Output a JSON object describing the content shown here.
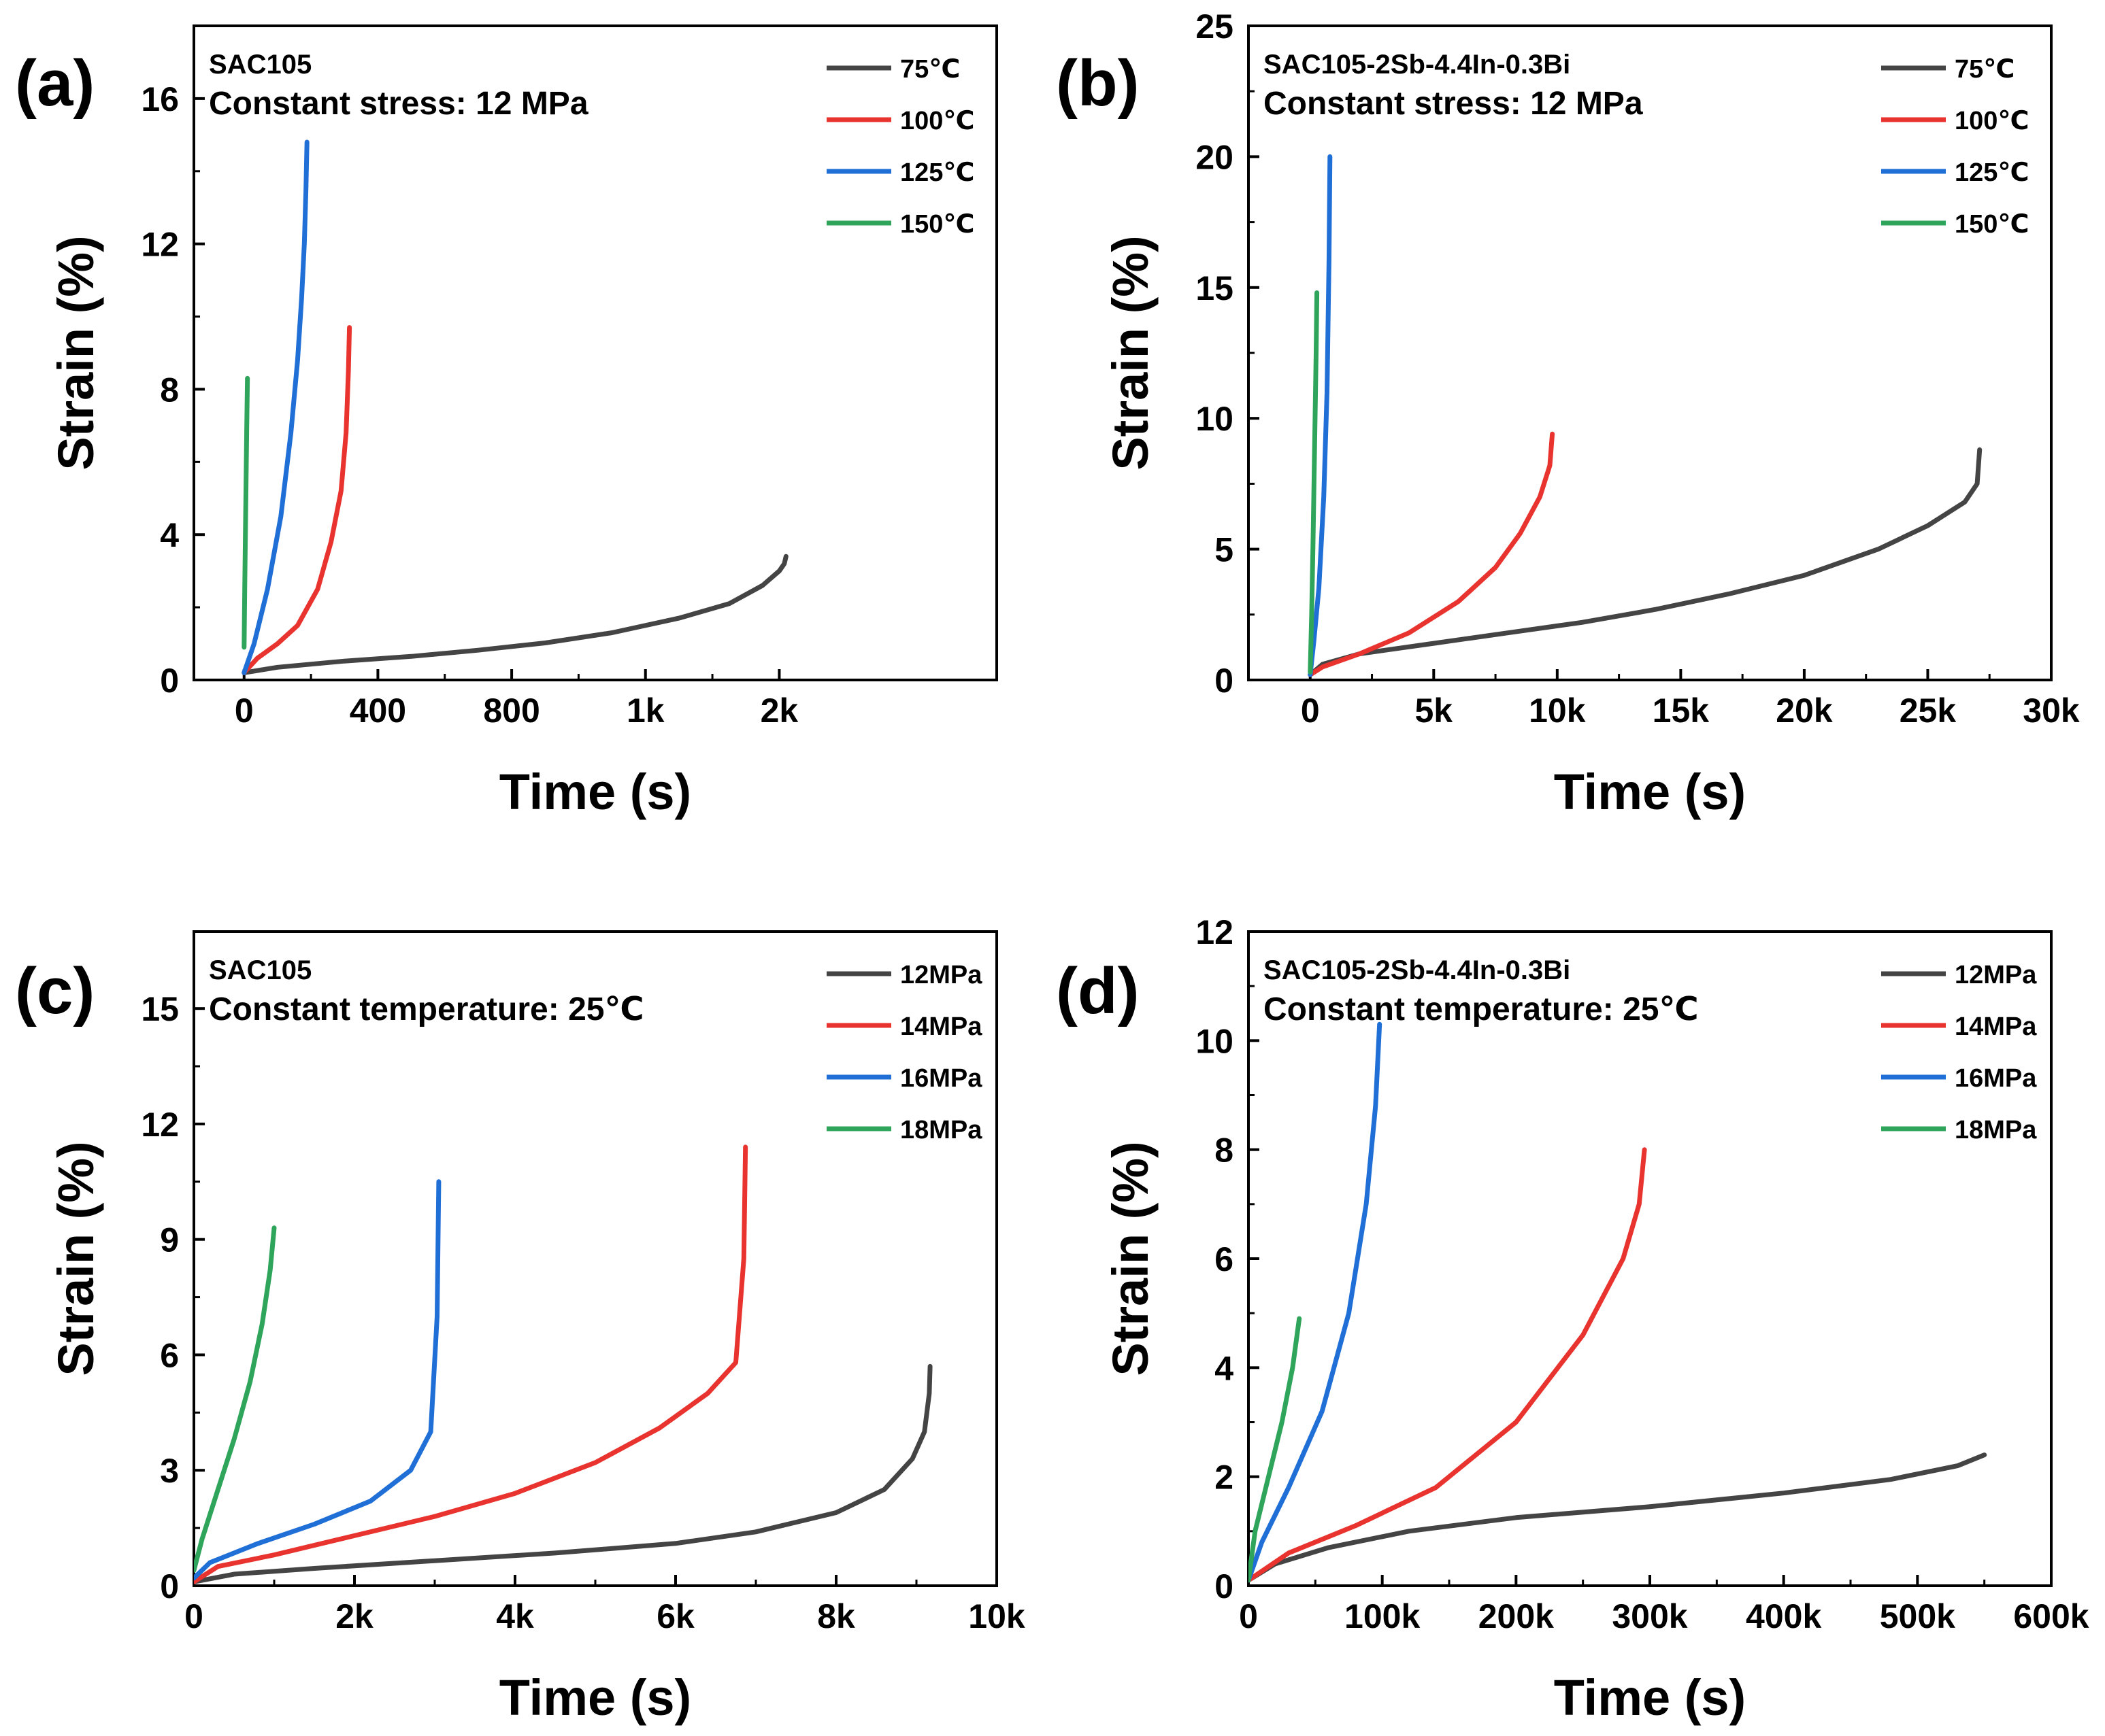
{
  "figure": {
    "description_note": "Four creep curve panels"
  },
  "chart_data": [
    {
      "type": "line",
      "panel_label": "(a)",
      "annotation_line1": "SAC105",
      "annotation_line2": "Constant stress: 12 MPa",
      "xlabel": "Time (s)",
      "ylabel": "Strain (%)",
      "xlim": [
        -150,
        2250
      ],
      "ylim": [
        0,
        18
      ],
      "xticks": [
        0,
        400,
        800,
        1000,
        2000
      ],
      "xtick_labels": [
        "0",
        "400",
        "800",
        "1k",
        "2k"
      ],
      "xtick_positions": [
        0,
        400,
        800,
        1200,
        1600
      ],
      "yticks": [
        0,
        4,
        8,
        12,
        16
      ],
      "ytick_labels": [
        "0",
        "4",
        "8",
        "12",
        "16"
      ],
      "x_axis_note": "axis labels read 0, 400, 800, 1k, 2k at equal spacing; curves plotted on that label scale",
      "series": [
        {
          "name": "75℃",
          "color": "#444444",
          "x": [
            0,
            100,
            300,
            500,
            700,
            900,
            1100,
            1300,
            1450,
            1550,
            1600,
            1615,
            1620
          ],
          "y": [
            0.2,
            0.35,
            0.52,
            0.65,
            0.82,
            1.02,
            1.3,
            1.7,
            2.1,
            2.6,
            3.0,
            3.2,
            3.4
          ]
        },
        {
          "name": "100℃",
          "color": "#e8332f",
          "x": [
            0,
            40,
            100,
            160,
            220,
            260,
            290,
            305,
            312,
            315
          ],
          "y": [
            0.2,
            0.6,
            1.0,
            1.5,
            2.5,
            3.8,
            5.2,
            6.8,
            8.5,
            9.7
          ]
        },
        {
          "name": "125℃",
          "color": "#1f6fd6",
          "x": [
            0,
            30,
            70,
            110,
            140,
            160,
            172,
            180,
            185,
            188
          ],
          "y": [
            0.2,
            1.0,
            2.5,
            4.5,
            6.8,
            8.8,
            10.5,
            12.0,
            13.5,
            14.8
          ]
        },
        {
          "name": "150℃",
          "color": "#2ea55a",
          "x": [
            0,
            2,
            4,
            6,
            8,
            10
          ],
          "y": [
            0.9,
            2.5,
            4.0,
            5.5,
            7.0,
            8.3
          ]
        }
      ]
    },
    {
      "type": "line",
      "panel_label": "(b)",
      "annotation_line1": "SAC105-2Sb-4.4In-0.3Bi",
      "annotation_line2": "Constant stress: 12 MPa",
      "xlabel": "Time (s)",
      "ylabel": "Strain (%)",
      "xlim": [
        -2500,
        30000
      ],
      "ylim": [
        0,
        25
      ],
      "xticks": [
        0,
        5000,
        10000,
        15000,
        20000,
        25000,
        30000
      ],
      "xtick_labels": [
        "0",
        "5k",
        "10k",
        "15k",
        "20k",
        "25k",
        "30k"
      ],
      "yticks": [
        0,
        5,
        10,
        15,
        20,
        25
      ],
      "ytick_labels": [
        "0",
        "5",
        "10",
        "15",
        "20",
        "25"
      ],
      "series": [
        {
          "name": "75℃",
          "color": "#444444",
          "x": [
            0,
            500,
            2000,
            5000,
            8000,
            11000,
            14000,
            17000,
            20000,
            23000,
            25000,
            26500,
            27000,
            27100
          ],
          "y": [
            0.2,
            0.6,
            1.0,
            1.4,
            1.8,
            2.2,
            2.7,
            3.3,
            4.0,
            5.0,
            5.9,
            6.8,
            7.5,
            8.8
          ]
        },
        {
          "name": "100℃",
          "color": "#e8332f",
          "x": [
            0,
            500,
            2000,
            4000,
            6000,
            7500,
            8500,
            9300,
            9700,
            9800
          ],
          "y": [
            0.2,
            0.5,
            1.0,
            1.8,
            3.0,
            4.3,
            5.6,
            7.0,
            8.2,
            9.4
          ]
        },
        {
          "name": "125℃",
          "color": "#1f6fd6",
          "x": [
            0,
            150,
            350,
            550,
            680,
            760,
            800
          ],
          "y": [
            0.2,
            1.5,
            3.5,
            7.0,
            11.0,
            16.0,
            20.0
          ]
        },
        {
          "name": "150℃",
          "color": "#2ea55a",
          "x": [
            0,
            60,
            120,
            180,
            240,
            270
          ],
          "y": [
            0.3,
            2.5,
            5.5,
            9.0,
            12.5,
            14.8
          ]
        }
      ]
    },
    {
      "type": "line",
      "panel_label": "(c)",
      "annotation_line1": "SAC105",
      "annotation_line2": "Constant temperature: 25℃",
      "xlabel": "Time (s)",
      "ylabel": "Strain (%)",
      "xlim": [
        0,
        10000
      ],
      "ylim": [
        0,
        17
      ],
      "xticks": [
        0,
        2000,
        4000,
        6000,
        8000,
        10000
      ],
      "xtick_labels": [
        "0",
        "2k",
        "4k",
        "6k",
        "8k",
        "10k"
      ],
      "yticks": [
        0,
        3,
        6,
        9,
        12,
        15
      ],
      "ytick_labels": [
        "0",
        "3",
        "6",
        "9",
        "12",
        "15"
      ],
      "series": [
        {
          "name": "12MPa",
          "color": "#444444",
          "x": [
            0,
            500,
            1500,
            3000,
            4500,
            6000,
            7000,
            8000,
            8600,
            8950,
            9100,
            9160,
            9170
          ],
          "y": [
            0.1,
            0.3,
            0.45,
            0.65,
            0.85,
            1.1,
            1.4,
            1.9,
            2.5,
            3.3,
            4.0,
            5.0,
            5.7
          ]
        },
        {
          "name": "14MPa",
          "color": "#e8332f",
          "x": [
            0,
            300,
            1000,
            2000,
            3000,
            4000,
            5000,
            5800,
            6400,
            6750,
            6850,
            6870
          ],
          "y": [
            0.1,
            0.5,
            0.8,
            1.3,
            1.8,
            2.4,
            3.2,
            4.1,
            5.0,
            5.8,
            8.5,
            11.4
          ]
        },
        {
          "name": "16MPa",
          "color": "#1f6fd6",
          "x": [
            0,
            200,
            800,
            1500,
            2200,
            2700,
            2950,
            3030,
            3050
          ],
          "y": [
            0.2,
            0.6,
            1.1,
            1.6,
            2.2,
            3.0,
            4.0,
            7.0,
            10.5
          ]
        },
        {
          "name": "18MPa",
          "color": "#2ea55a",
          "x": [
            0,
            100,
            300,
            500,
            700,
            850,
            950,
            1000
          ],
          "y": [
            0.4,
            1.2,
            2.5,
            3.8,
            5.3,
            6.8,
            8.2,
            9.3
          ]
        }
      ]
    },
    {
      "type": "line",
      "panel_label": "(d)",
      "annotation_line1": "SAC105-2Sb-4.4In-0.3Bi",
      "annotation_line2": "Constant temperature: 25℃",
      "xlabel": "Time (s)",
      "ylabel": "Strain (%)",
      "xlim": [
        0,
        600000
      ],
      "ylim": [
        0,
        12
      ],
      "xticks": [
        0,
        100000,
        200000,
        300000,
        400000,
        500000,
        600000
      ],
      "xtick_labels": [
        "0",
        "100k",
        "200k",
        "300k",
        "400k",
        "500k",
        "600k"
      ],
      "yticks": [
        0,
        2,
        4,
        6,
        8,
        10,
        12
      ],
      "ytick_labels": [
        "0",
        "2",
        "4",
        "6",
        "8",
        "10",
        "12"
      ],
      "series": [
        {
          "name": "12MPa",
          "color": "#444444",
          "x": [
            0,
            20000,
            60000,
            120000,
            200000,
            300000,
            400000,
            480000,
            530000,
            550000
          ],
          "y": [
            0.1,
            0.4,
            0.7,
            1.0,
            1.25,
            1.45,
            1.7,
            1.95,
            2.2,
            2.4
          ]
        },
        {
          "name": "14MPa",
          "color": "#e8332f",
          "x": [
            0,
            30000,
            80000,
            140000,
            200000,
            250000,
            280000,
            292000,
            296000
          ],
          "y": [
            0.1,
            0.6,
            1.1,
            1.8,
            3.0,
            4.6,
            6.0,
            7.0,
            8.0
          ]
        },
        {
          "name": "16MPa",
          "color": "#1f6fd6",
          "x": [
            0,
            10000,
            30000,
            55000,
            75000,
            88000,
            95000,
            98000
          ],
          "y": [
            0.1,
            0.8,
            1.8,
            3.2,
            5.0,
            7.0,
            8.8,
            10.3
          ]
        },
        {
          "name": "18MPa",
          "color": "#2ea55a",
          "x": [
            0,
            5000,
            15000,
            25000,
            33000,
            38000
          ],
          "y": [
            0.1,
            1.0,
            2.0,
            3.0,
            4.0,
            4.9
          ]
        }
      ]
    }
  ]
}
